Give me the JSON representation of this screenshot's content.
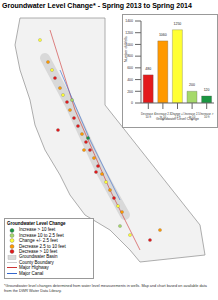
{
  "title": "Groundwater Level Change* - Spring 2013 to Spring 2014",
  "chart_data": {
    "type": "bar",
    "x_label": "Groundwater Level Change",
    "y_label": "Number of Wells",
    "categories": [
      "Decrease > 10 ft",
      "Decrease 2.5 to 10 ft",
      "Change +/- 2.5 ft",
      "Increase 2.5 to 10 ft",
      "Increase > 10 ft"
    ],
    "values": [
      480,
      1060,
      1250,
      200,
      120
    ],
    "colors": [
      "#e31a1c",
      "#ff9900",
      "#ffff33",
      "#a6d96a",
      "#1a9641"
    ],
    "ylim": [
      0,
      1400
    ],
    "yticks": [
      0,
      200,
      400,
      600,
      800,
      1000,
      1200,
      1400
    ],
    "grid": false,
    "data_labels": true
  },
  "legend": {
    "title": "Groundwater Level Change",
    "items": [
      {
        "label": "Increase > 10 feet",
        "color": "#1a9641"
      },
      {
        "label": "Increase 10 to 2.5 feet",
        "color": "#a6d96a"
      },
      {
        "label": "Change +/- 2.5 feet",
        "color": "#ffff33"
      },
      {
        "label": "Decrease 2.5 to 10 feet",
        "color": "#ff9900"
      },
      {
        "label": "Decrease > 10 feet",
        "color": "#e31a1c"
      },
      {
        "label": "Groundwater Basin",
        "color": "#d9d9d9"
      },
      {
        "label": "County Boundary",
        "color": "#999999"
      },
      {
        "label": "Major Highway",
        "color": "#cc3333"
      },
      {
        "label": "Major Canal",
        "color": "#3366cc"
      }
    ]
  },
  "footnote": "*Groundwater level changes determined from water level measurements in wells. Map and chart based on available data from the DWR Water Data Library."
}
